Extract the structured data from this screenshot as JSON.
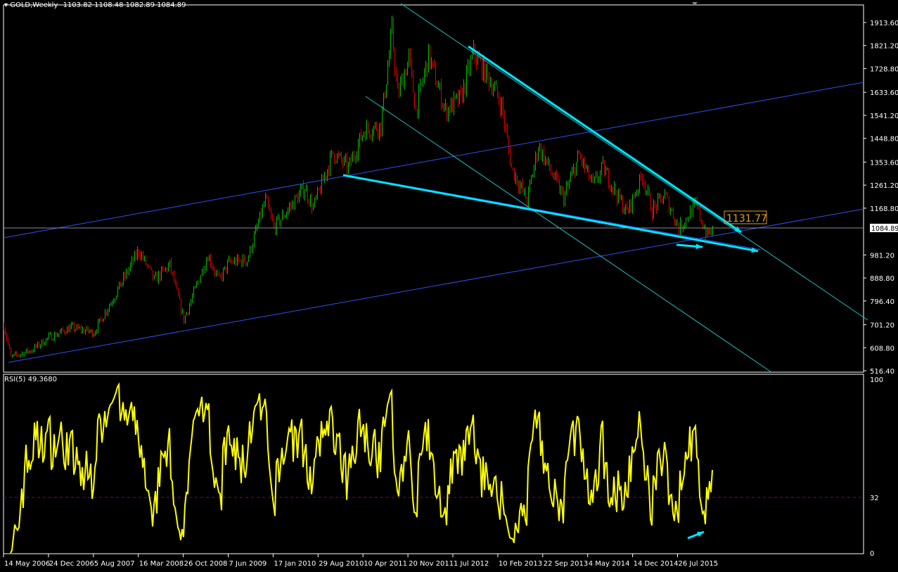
{
  "header": {
    "symbol": "GOLD,Weekly",
    "ohlc": "1103.82 1108.48 1082.89 1084.89"
  },
  "rsi_panel": {
    "label": "RSI(5) 49.3680",
    "levels": [
      "100",
      "32",
      "0"
    ],
    "level_dashed": 32
  },
  "annotation_label": "1131.77",
  "current_price_tag": "1084.89",
  "colors": {
    "background": "#000000",
    "bull_candle": "#00c000",
    "bear_candle": "#e00000",
    "channel_line": "#3050f0",
    "fib_line": "#20c0c0",
    "arrow": "#00e5ff",
    "rsi_line": "#ffff00",
    "annotation": "#e0a020",
    "level_line": "#800080"
  },
  "chart_data": {
    "type": "candlestick",
    "title": "GOLD,Weekly",
    "y_ticks": [
      "1913.60",
      "1821.20",
      "1728.80",
      "1633.60",
      "1541.20",
      "1448.80",
      "1353.60",
      "1261.20",
      "1168.80",
      "981.20",
      "888.80",
      "796.40",
      "701.20",
      "608.80",
      "516.40"
    ],
    "ylim": [
      516.4,
      1913.6
    ],
    "x_ticks": [
      "14 May 2006",
      "24 Dec 2006",
      "5 Aug 2007",
      "16 Mar 2008",
      "26 Oct 2008",
      "7 Jun 2009",
      "17 Jan 2010",
      "29 Aug 2010",
      "10 Apr 2011",
      "20 Nov 2011",
      "1 Jul 2012",
      "10 Feb 2013",
      "22 Sep 2013",
      "4 May 2014",
      "14 Dec 2014",
      "26 Jul 2015"
    ],
    "last_close": 1084.89,
    "close_path": [
      [
        "2006-05-14",
        700
      ],
      [
        "2006-06-18",
        570
      ],
      [
        "2006-10-01",
        600
      ],
      [
        "2006-12-24",
        650
      ],
      [
        "2007-04-15",
        690
      ],
      [
        "2007-08-05",
        670
      ],
      [
        "2007-11-11",
        810
      ],
      [
        "2008-03-16",
        1000
      ],
      [
        "2008-06-01",
        880
      ],
      [
        "2008-08-17",
        940
      ],
      [
        "2008-10-26",
        720
      ],
      [
        "2009-02-22",
        980
      ],
      [
        "2009-04-19",
        880
      ],
      [
        "2009-06-07",
        950
      ],
      [
        "2009-09-06",
        960
      ],
      [
        "2009-12-06",
        1200
      ],
      [
        "2010-01-17",
        1090
      ],
      [
        "2010-06-20",
        1250
      ],
      [
        "2010-08-01",
        1170
      ],
      [
        "2010-11-07",
        1390
      ],
      [
        "2011-01-23",
        1330
      ],
      [
        "2011-04-10",
        1480
      ],
      [
        "2011-07-03",
        1500
      ],
      [
        "2011-08-28",
        1880
      ],
      [
        "2011-09-25",
        1620
      ],
      [
        "2011-11-20",
        1770
      ],
      [
        "2011-12-25",
        1560
      ],
      [
        "2012-02-26",
        1780
      ],
      [
        "2012-05-20",
        1560
      ],
      [
        "2012-08-05",
        1610
      ],
      [
        "2012-10-07",
        1790
      ],
      [
        "2013-01-06",
        1670
      ],
      [
        "2013-02-24",
        1580
      ],
      [
        "2013-04-14",
        1330
      ],
      [
        "2013-06-30",
        1200
      ],
      [
        "2013-08-25",
        1420
      ],
      [
        "2013-12-29",
        1210
      ],
      [
        "2014-03-16",
        1380
      ],
      [
        "2014-05-25",
        1260
      ],
      [
        "2014-07-13",
        1330
      ],
      [
        "2014-11-09",
        1150
      ],
      [
        "2015-01-25",
        1300
      ],
      [
        "2015-03-15",
        1160
      ],
      [
        "2015-05-17",
        1220
      ],
      [
        "2015-07-26",
        1090
      ],
      [
        "2015-10-18",
        1180
      ],
      [
        "2015-12-13",
        1060
      ],
      [
        "2016-01-10",
        1084.89
      ]
    ]
  }
}
